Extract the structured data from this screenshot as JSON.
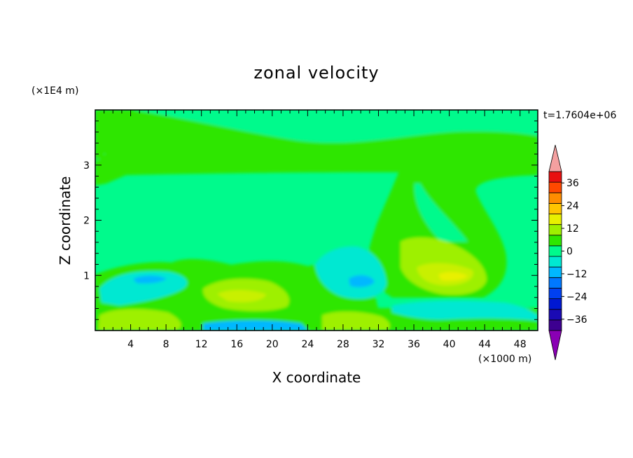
{
  "chart_data": {
    "type": "heatmap",
    "title": "zonal velocity",
    "xlabel": "X coordinate",
    "ylabel": "Z coordinate",
    "x_unit": "(×1000 m)",
    "y_unit": "(×1E4 m)",
    "time_label": "t=1.7604e+06",
    "xlim": [
      0,
      50
    ],
    "ylim": [
      0,
      4
    ],
    "x_ticks": [
      4,
      8,
      12,
      16,
      20,
      24,
      28,
      32,
      36,
      40,
      44,
      48
    ],
    "y_ticks": [
      1,
      2,
      3
    ],
    "grid": false,
    "colorbar": {
      "placement": "right",
      "levels": [
        -42,
        -36,
        -30,
        -24,
        -18,
        -12,
        -6,
        0,
        6,
        12,
        18,
        24,
        30,
        36,
        42
      ],
      "tick_values": [
        36,
        24,
        12,
        0,
        -12,
        -24,
        -36
      ],
      "tick_labels": [
        "36",
        "24",
        "12",
        "0",
        "−12",
        "−24",
        "−36"
      ],
      "colors": [
        "#3d0090",
        "#1a0ab4",
        "#0018d2",
        "#0040f0",
        "#0078ff",
        "#00b8ff",
        "#00e8d2",
        "#00fa8c",
        "#2ee600",
        "#9ef000",
        "#e8f000",
        "#ffc400",
        "#ff8c00",
        "#ff4800",
        "#e81010"
      ],
      "under_color": "#8a00b4",
      "over_color": "#f4a0a0"
    },
    "regions": [
      {
        "id": "light-green-background",
        "x": [
          0,
          50
        ],
        "y": [
          0,
          4
        ],
        "value": 0
      },
      {
        "id": "upper-light-green-band",
        "x": [
          0,
          50
        ],
        "y": [
          2.9,
          4
        ],
        "value": 1
      },
      {
        "id": "green-band-z3",
        "x": [
          0,
          50
        ],
        "y": [
          2.75,
          3.3
        ],
        "value": 2
      },
      {
        "id": "right-green-plume",
        "x": [
          34,
          50
        ],
        "y": [
          0.7,
          3.0
        ],
        "value": 2
      },
      {
        "id": "yellow-green-core",
        "x": [
          35,
          46
        ],
        "y": [
          0.7,
          1.7
        ],
        "value": 8
      },
      {
        "id": "yellow-max",
        "x": [
          37.5,
          42.5
        ],
        "y": [
          0.88,
          1.05
        ],
        "value": 12
      },
      {
        "id": "cyan-left-eddy",
        "x": [
          1,
          12
        ],
        "y": [
          0.5,
          1.2
        ],
        "value": -6
      },
      {
        "id": "cyan-mid-eddy",
        "x": [
          24,
          34
        ],
        "y": [
          0.6,
          1.5
        ],
        "value": -6
      },
      {
        "id": "yellow-green-lower-mid",
        "x": [
          11,
          21
        ],
        "y": [
          0.35,
          0.85
        ],
        "value": 6
      },
      {
        "id": "yellow-green-lower-left",
        "x": [
          0,
          10
        ],
        "y": [
          0,
          0.45
        ],
        "value": 6
      },
      {
        "id": "green-lower-right-band",
        "x": [
          24,
          50
        ],
        "y": [
          0,
          0.4
        ],
        "value": 3
      },
      {
        "id": "cyan-bottom-right",
        "x": [
          33,
          50
        ],
        "y": [
          0.25,
          0.6
        ],
        "value": -6
      },
      {
        "id": "blue-surface-patch",
        "x": [
          16,
          23
        ],
        "y": [
          0,
          0.1
        ],
        "value": -14
      }
    ]
  }
}
